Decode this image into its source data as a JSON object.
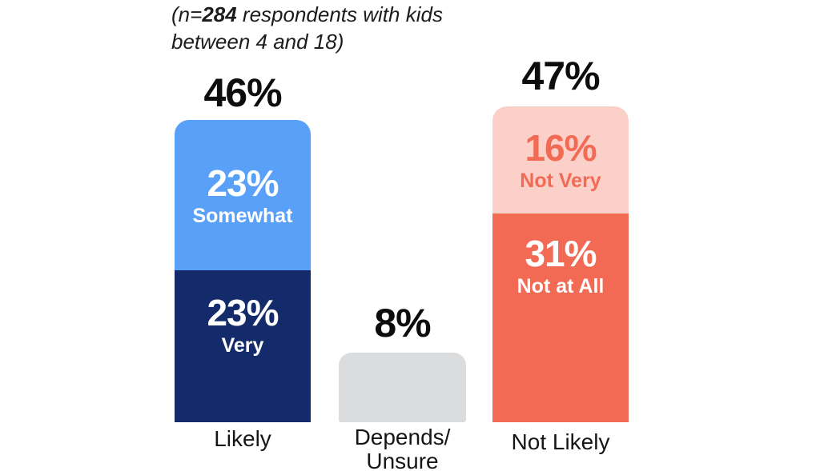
{
  "subtitle": {
    "prefix": "(n=",
    "n": "284",
    "rest": " respondents with kids\nbetween 4 and 18)"
  },
  "chart_data": {
    "type": "bar",
    "stacked": true,
    "unit": "%",
    "note": "(n=284 respondents with kids between 4 and 18)",
    "categories": [
      "Likely",
      "Depends/Unsure",
      "Not Likely"
    ],
    "axes": "none",
    "legend": "none",
    "grid": false,
    "bars": [
      {
        "category": "Likely",
        "total": 46,
        "total_label": "46%",
        "segments": [
          {
            "name": "Somewhat",
            "value": 23,
            "value_label": "23%",
            "position": "top",
            "color": "#58A0F8",
            "text_color": "#FFFFFF"
          },
          {
            "name": "Very",
            "value": 23,
            "value_label": "23%",
            "position": "bottom",
            "color": "#132A6B",
            "text_color": "#FFFFFF"
          }
        ]
      },
      {
        "category": "Depends/\nUnsure",
        "total": 8,
        "total_label": "8%",
        "segments": [
          {
            "name": "Depends/Unsure",
            "value": 8,
            "value_label": "",
            "position": "only",
            "color": "#DBDCDE",
            "text_color": ""
          }
        ]
      },
      {
        "category": "Not Likely",
        "total": 47,
        "total_label": "47%",
        "segments": [
          {
            "name": "Not Very",
            "value": 16,
            "value_label": "16%",
            "position": "top",
            "color": "#FBD0C9",
            "text_color": "#F26A54"
          },
          {
            "name": "Not at All",
            "value": 31,
            "value_label": "31%",
            "position": "bottom",
            "color": "#F26A54",
            "text_color": "#FFFFFF"
          }
        ]
      }
    ]
  },
  "colors": {
    "background": "#FFFFFF",
    "label_text": "#0D0D0D",
    "blue_light": "#58A0F8",
    "navy": "#132A6B",
    "gray": "#DBDCDE",
    "pink": "#FBD0C9",
    "salmon": "#F26A54"
  }
}
